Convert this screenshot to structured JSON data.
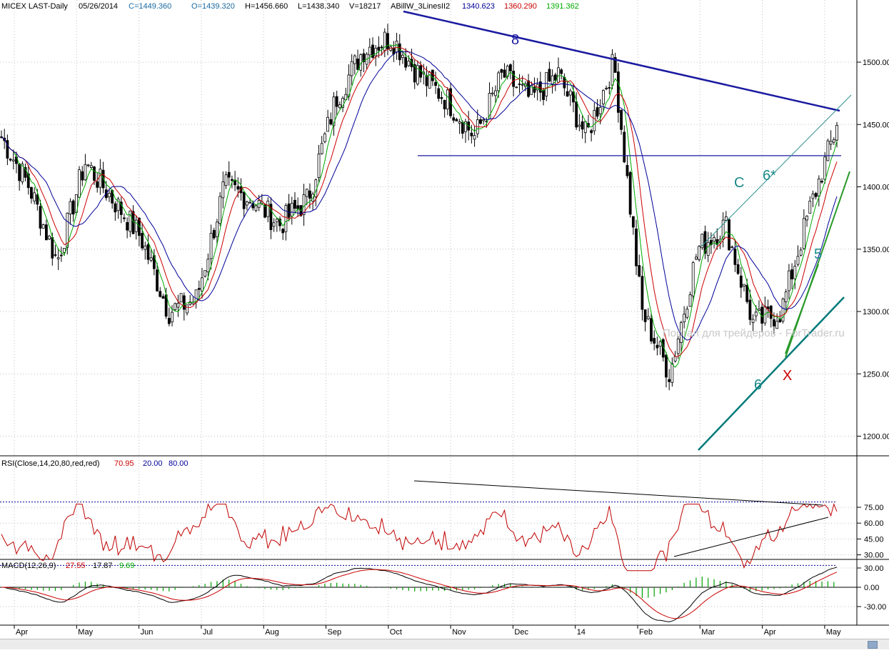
{
  "header": {
    "symbol": "MICEX LAST-Daily",
    "date": "05/26/2014",
    "close": "C=1449.360",
    "open": "O=1439.320",
    "high": "H=1456.660",
    "low": "L=1438.340",
    "volume": "V=18217",
    "indicator": "ABillW_3LinesII2",
    "ind_blue": "1340.623",
    "ind_red": "1360.290",
    "ind_green": "1391.362"
  },
  "rsi_header": {
    "label": "RSI(Close,14,20,80,red,red)",
    "value": "70.95",
    "low": "20.00",
    "high": "80.00"
  },
  "macd_header": {
    "label": "MACD(12,26,9)",
    "macd": "27.55",
    "signal": "17.87",
    "hist": "9.69"
  },
  "watermark": "Портал для трейдеров - ForTrader.ru",
  "annotations": {
    "label_8": "8",
    "label_C": "C",
    "label_6star": "6*",
    "label_5": "5",
    "label_6": "6",
    "label_X": "X"
  },
  "colors": {
    "price": "#000000",
    "ma_green": "#00aa00",
    "ma_red": "#cc0000",
    "ma_blue": "#000099",
    "trend_navy": "#1a1aa0",
    "channel_teal": "#007a7a",
    "rsi": "#c00000",
    "macd": "#000000",
    "signal": "#cc0000",
    "hist": "#00a000",
    "label_teal": "#1a8a8a",
    "label_red": "#cc0000"
  },
  "chart_data": [
    {
      "type": "candlestick",
      "title": "MICEX LAST-Daily",
      "x_labels": [
        "Apr",
        "May",
        "Jun",
        "Jul",
        "Aug",
        "Sep",
        "Oct",
        "Nov",
        "Dec",
        "14",
        "Feb",
        "Mar",
        "Apr",
        "May"
      ],
      "y_ticks": [
        1200,
        1250,
        1300,
        1350,
        1400,
        1450,
        1500
      ],
      "ylim": [
        1170,
        1530
      ],
      "last": {
        "open": 1439.32,
        "high": 1456.66,
        "low": 1438.34,
        "close": 1449.36,
        "volume": 18217
      },
      "approx_close_path": [
        {
          "x": "Apr",
          "y": 1440
        },
        {
          "x": "Apr",
          "y": 1400
        },
        {
          "x": "Apr",
          "y": 1340
        },
        {
          "x": "May",
          "y": 1420
        },
        {
          "x": "May",
          "y": 1390
        },
        {
          "x": "Jun",
          "y": 1360
        },
        {
          "x": "Jun",
          "y": 1300
        },
        {
          "x": "Jul",
          "y": 1310
        },
        {
          "x": "Jul",
          "y": 1400
        },
        {
          "x": "Aug",
          "y": 1390
        },
        {
          "x": "Aug",
          "y": 1370
        },
        {
          "x": "Sep",
          "y": 1390
        },
        {
          "x": "Sep",
          "y": 1470
        },
        {
          "x": "Oct",
          "y": 1510
        },
        {
          "x": "Oct",
          "y": 1520
        },
        {
          "x": "Nov",
          "y": 1490
        },
        {
          "x": "Nov",
          "y": 1470
        },
        {
          "x": "Dec",
          "y": 1440
        },
        {
          "x": "Dec",
          "y": 1490
        },
        {
          "x": "14",
          "y": 1470
        },
        {
          "x": "14",
          "y": 1490
        },
        {
          "x": "Feb",
          "y": 1440
        },
        {
          "x": "Feb",
          "y": 1500
        },
        {
          "x": "Mar",
          "y": 1300
        },
        {
          "x": "Mar",
          "y": 1250
        },
        {
          "x": "Apr",
          "y": 1350
        },
        {
          "x": "Apr",
          "y": 1370
        },
        {
          "x": "Apr",
          "y": 1290
        },
        {
          "x": "May",
          "y": 1300
        },
        {
          "x": "May",
          "y": 1380
        },
        {
          "x": "May",
          "y": 1449
        }
      ],
      "horizontal_level": 1425,
      "ma_last": {
        "blue": 1340.623,
        "red": 1360.29,
        "green": 1391.362
      }
    },
    {
      "type": "line",
      "title": "RSI(Close,14,20,80,red,red)",
      "y_ticks": [
        30,
        45,
        60,
        75
      ],
      "bands": [
        20,
        80
      ],
      "last": 70.95
    },
    {
      "type": "line",
      "title": "MACD(12,26,9)",
      "y_ticks": [
        -30,
        0,
        30
      ],
      "last": {
        "macd": 27.55,
        "signal": 17.87,
        "hist": 9.69
      }
    }
  ]
}
